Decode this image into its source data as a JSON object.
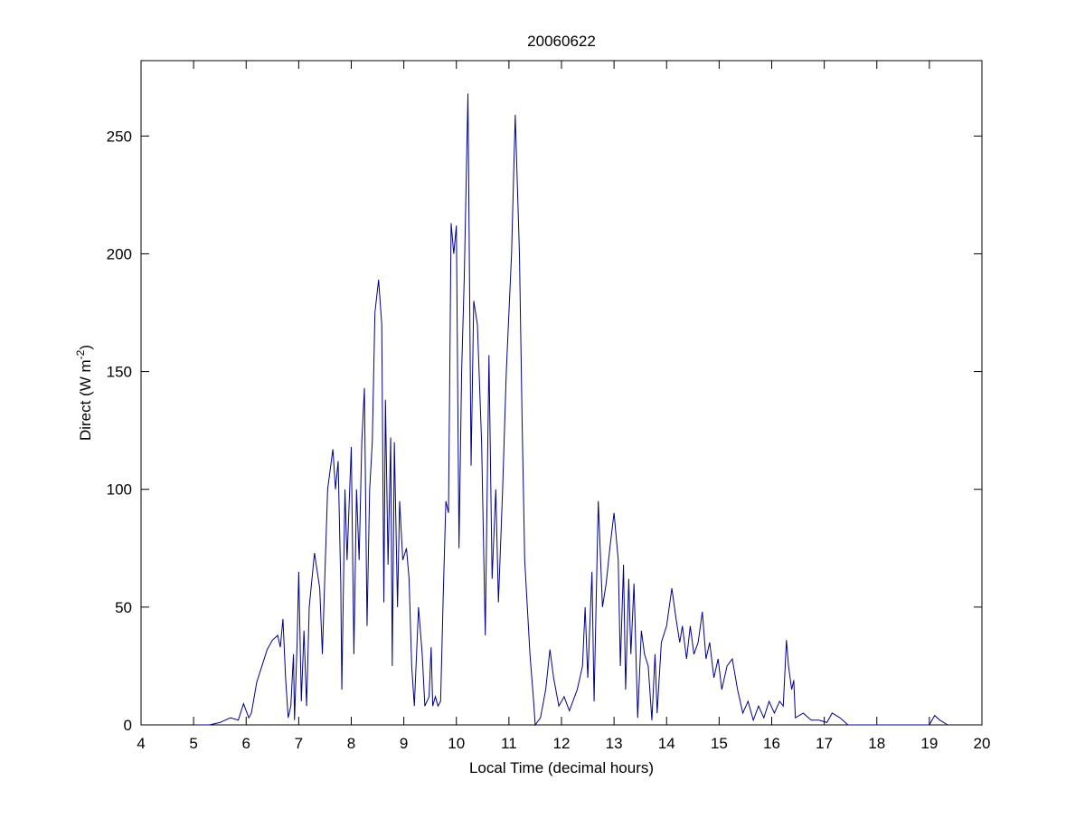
{
  "chart_data": {
    "type": "line",
    "title": "20060622",
    "xlabel": "Local Time (decimal hours)",
    "ylabel": {
      "text": "Direct (W m",
      "superscript": "-2",
      "suffix": ")"
    },
    "color": "#00008b",
    "x": [
      5.05,
      5.3,
      5.5,
      5.7,
      5.85,
      5.95,
      6.05,
      6.1,
      6.2,
      6.3,
      6.4,
      6.5,
      6.6,
      6.65,
      6.7,
      6.75,
      6.8,
      6.85,
      6.9,
      6.92,
      6.97,
      7.0,
      7.05,
      7.1,
      7.15,
      7.2,
      7.3,
      7.4,
      7.45,
      7.55,
      7.65,
      7.7,
      7.75,
      7.8,
      7.82,
      7.88,
      7.92,
      8.0,
      8.05,
      8.1,
      8.15,
      8.2,
      8.25,
      8.3,
      8.35,
      8.4,
      8.45,
      8.52,
      8.58,
      8.62,
      8.65,
      8.7,
      8.75,
      8.78,
      8.82,
      8.88,
      8.92,
      8.98,
      9.05,
      9.1,
      9.15,
      9.2,
      9.28,
      9.35,
      9.4,
      9.48,
      9.52,
      9.55,
      9.6,
      9.65,
      9.7,
      9.75,
      9.8,
      9.85,
      9.9,
      9.95,
      10.0,
      10.05,
      10.1,
      10.15,
      10.22,
      10.28,
      10.33,
      10.4,
      10.48,
      10.55,
      10.62,
      10.68,
      10.75,
      10.8,
      10.88,
      10.95,
      11.05,
      11.12,
      11.2,
      11.25,
      11.3,
      11.4,
      11.47,
      11.5,
      11.6,
      11.7,
      11.78,
      11.85,
      11.95,
      12.05,
      12.15,
      12.3,
      12.4,
      12.45,
      12.5,
      12.58,
      12.62,
      12.7,
      12.78,
      12.85,
      12.92,
      13.0,
      13.08,
      13.12,
      13.18,
      13.22,
      13.28,
      13.32,
      13.38,
      13.45,
      13.52,
      13.58,
      13.65,
      13.72,
      13.78,
      13.82,
      13.9,
      14.0,
      14.1,
      14.18,
      14.25,
      14.3,
      14.38,
      14.45,
      14.52,
      14.6,
      14.68,
      14.75,
      14.82,
      14.9,
      14.98,
      15.05,
      15.15,
      15.25,
      15.35,
      15.45,
      15.55,
      15.65,
      15.75,
      15.85,
      15.95,
      16.05,
      16.15,
      16.22,
      16.28,
      16.32,
      16.38,
      16.42,
      16.45,
      16.6,
      16.75,
      16.9,
      17.05,
      17.15,
      17.3,
      17.45,
      17.7,
      18.5,
      19.0,
      19.1,
      19.2,
      19.35
    ],
    "values": [
      0,
      0,
      1,
      3,
      2,
      9,
      3,
      5,
      18,
      25,
      32,
      36,
      38,
      33,
      45,
      20,
      3,
      8,
      30,
      2,
      35,
      65,
      10,
      40,
      8,
      50,
      73,
      58,
      30,
      100,
      117,
      100,
      112,
      60,
      15,
      100,
      70,
      118,
      30,
      100,
      70,
      120,
      143,
      42,
      100,
      120,
      175,
      189,
      170,
      52,
      138,
      68,
      122,
      25,
      120,
      50,
      95,
      70,
      75,
      62,
      25,
      8,
      50,
      30,
      8,
      12,
      33,
      8,
      12,
      8,
      10,
      55,
      95,
      90,
      213,
      200,
      212,
      75,
      150,
      190,
      268,
      110,
      180,
      170,
      120,
      38,
      157,
      62,
      100,
      52,
      100,
      150,
      200,
      259,
      200,
      130,
      70,
      30,
      10,
      0,
      3,
      15,
      32,
      20,
      8,
      12,
      6,
      15,
      25,
      50,
      20,
      65,
      10,
      95,
      50,
      60,
      75,
      90,
      70,
      25,
      68,
      15,
      62,
      30,
      60,
      3,
      40,
      30,
      25,
      2,
      30,
      5,
      35,
      42,
      58,
      45,
      35,
      42,
      28,
      42,
      30,
      35,
      48,
      28,
      35,
      20,
      28,
      15,
      25,
      28,
      15,
      5,
      10,
      2,
      8,
      3,
      10,
      5,
      10,
      8,
      36,
      25,
      15,
      19,
      3,
      5,
      2,
      2,
      1,
      5,
      3,
      0,
      0,
      0,
      0,
      4,
      2,
      0
    ],
    "xlim": [
      4,
      20
    ],
    "xticks": [
      4,
      5,
      6,
      7,
      8,
      9,
      10,
      11,
      12,
      13,
      14,
      15,
      16,
      17,
      18,
      19,
      20
    ],
    "ylim": [
      0,
      282
    ],
    "yticks": [
      0,
      50,
      100,
      150,
      200,
      250
    ]
  }
}
